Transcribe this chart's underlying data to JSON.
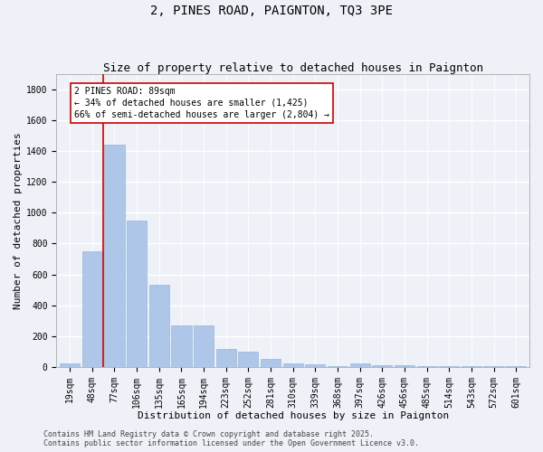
{
  "title": "2, PINES ROAD, PAIGNTON, TQ3 3PE",
  "subtitle": "Size of property relative to detached houses in Paignton",
  "xlabel": "Distribution of detached houses by size in Paignton",
  "ylabel": "Number of detached properties",
  "categories": [
    "19sqm",
    "48sqm",
    "77sqm",
    "106sqm",
    "135sqm",
    "165sqm",
    "194sqm",
    "223sqm",
    "252sqm",
    "281sqm",
    "310sqm",
    "339sqm",
    "368sqm",
    "397sqm",
    "426sqm",
    "456sqm",
    "485sqm",
    "514sqm",
    "543sqm",
    "572sqm",
    "601sqm"
  ],
  "values": [
    20,
    750,
    1440,
    950,
    535,
    270,
    270,
    115,
    100,
    50,
    25,
    15,
    5,
    20,
    10,
    10,
    5,
    5,
    5,
    5,
    5
  ],
  "bar_color": "#aec6e8",
  "vline_color": "#cc0000",
  "vline_index": 1.5,
  "annotation_text": "2 PINES ROAD: 89sqm\n← 34% of detached houses are smaller (1,425)\n66% of semi-detached houses are larger (2,804) →",
  "annotation_box_color": "#cc0000",
  "ylim": [
    0,
    1900
  ],
  "yticks": [
    0,
    200,
    400,
    600,
    800,
    1000,
    1200,
    1400,
    1600,
    1800
  ],
  "background_color": "#eef2f8",
  "axes_background": "#eef2f8",
  "grid_color": "#ffffff",
  "footer": "Contains HM Land Registry data © Crown copyright and database right 2025.\nContains public sector information licensed under the Open Government Licence v3.0.",
  "title_fontsize": 10,
  "subtitle_fontsize": 9,
  "label_fontsize": 8,
  "tick_fontsize": 7,
  "annot_fontsize": 7,
  "footer_fontsize": 6
}
